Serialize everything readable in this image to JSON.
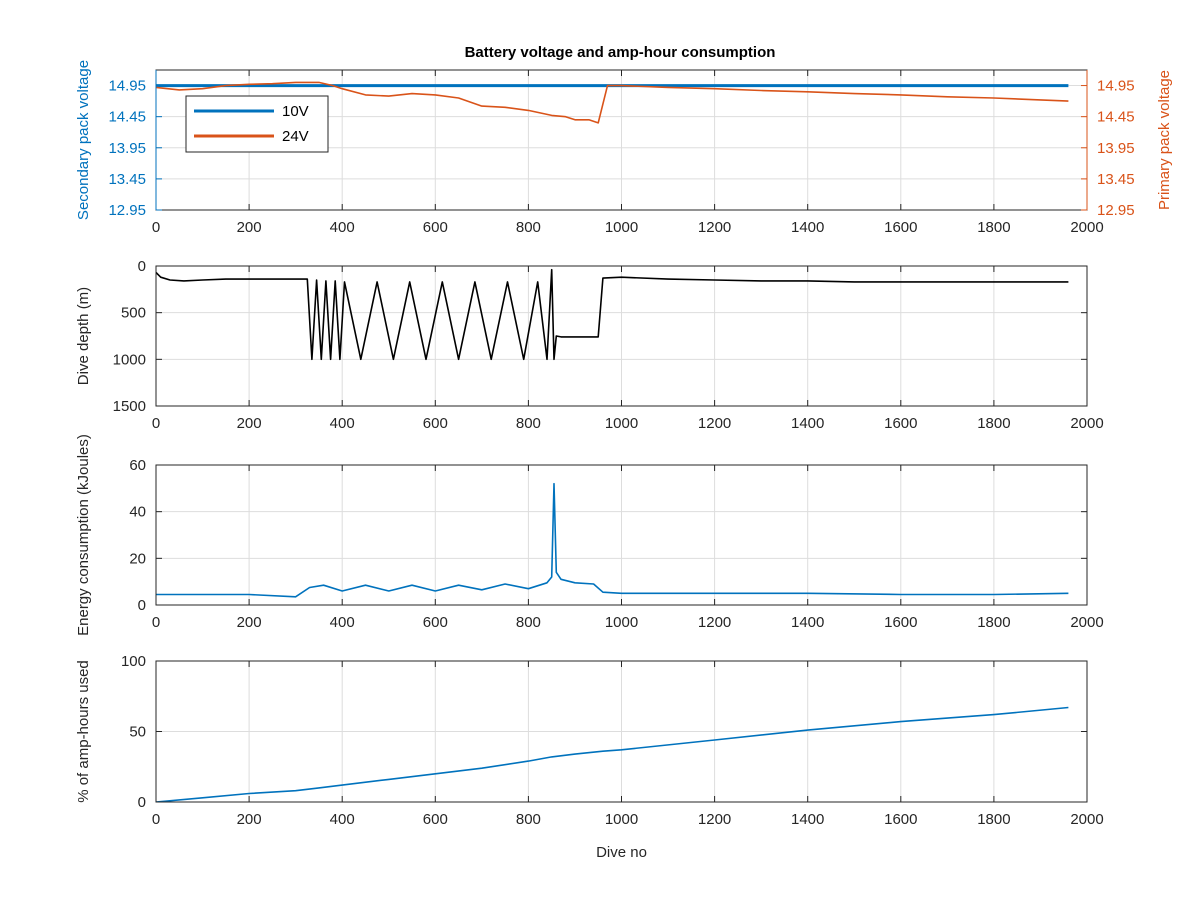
{
  "figure": {
    "title": "Battery voltage and amp-hour consumption",
    "xlabel_bottom": "Dive no"
  },
  "colors": {
    "blue": "#0072BD",
    "orange": "#D95319",
    "black": "#000000",
    "grid": "#dddddd",
    "axis": "#262626"
  },
  "chart_data": [
    {
      "type": "line",
      "id": "voltage",
      "title": "Battery voltage and amp-hour consumption",
      "ylabel_left": "Secondary pack voltage",
      "ylabel_right": "Primary pack voltage",
      "xlim": [
        0,
        2000
      ],
      "ylim": [
        12.95,
        15.2
      ],
      "x_ticks": [
        "0",
        "200",
        "400",
        "600",
        "800",
        "1000",
        "1200",
        "1400",
        "1600",
        "1800",
        "2000"
      ],
      "y_ticks_left": [
        "12.95",
        "13.45",
        "13.95",
        "14.45",
        "14.95"
      ],
      "y_ticks_right": [
        "12.95",
        "13.45",
        "13.95",
        "14.45",
        "14.95"
      ],
      "legend": {
        "placement": "top-left",
        "entries": [
          "10V",
          "24V"
        ]
      },
      "grid": true,
      "series": [
        {
          "name": "10V",
          "axis": "left",
          "color": "#0072BD",
          "x": [
            0,
            1960
          ],
          "y": [
            14.95,
            14.95
          ]
        },
        {
          "name": "24V",
          "axis": "right",
          "color": "#D95319",
          "x": [
            0,
            50,
            100,
            150,
            200,
            250,
            300,
            350,
            380,
            400,
            450,
            500,
            550,
            600,
            650,
            700,
            750,
            800,
            850,
            880,
            900,
            930,
            950,
            970,
            1000,
            1100,
            1200,
            1300,
            1400,
            1500,
            1600,
            1700,
            1800,
            1900,
            1960
          ],
          "y": [
            14.92,
            14.88,
            14.9,
            14.95,
            14.97,
            14.98,
            15.0,
            15.0,
            14.95,
            14.9,
            14.8,
            14.78,
            14.82,
            14.8,
            14.75,
            14.62,
            14.6,
            14.55,
            14.47,
            14.45,
            14.4,
            14.4,
            14.35,
            14.95,
            14.95,
            14.92,
            14.9,
            14.87,
            14.85,
            14.82,
            14.8,
            14.77,
            14.75,
            14.72,
            14.7
          ]
        }
      ]
    },
    {
      "type": "line",
      "id": "depth",
      "ylabel": "Dive depth (m)",
      "xlim": [
        0,
        2000
      ],
      "ylim": [
        0,
        1500
      ],
      "y_reversed": true,
      "x_ticks": [
        "0",
        "200",
        "400",
        "600",
        "800",
        "1000",
        "1200",
        "1400",
        "1600",
        "1800",
        "2000"
      ],
      "y_ticks": [
        "0",
        "500",
        "1000",
        "1500"
      ],
      "grid": true,
      "series": [
        {
          "name": "",
          "color": "#000000",
          "x": [
            0,
            10,
            30,
            60,
            100,
            150,
            200,
            250,
            300,
            325,
            335,
            345,
            355,
            365,
            375,
            385,
            395,
            405,
            440,
            475,
            510,
            545,
            580,
            615,
            650,
            685,
            720,
            755,
            790,
            820,
            840,
            850,
            855,
            860,
            870,
            900,
            940,
            950,
            960,
            1000,
            1100,
            1200,
            1300,
            1400,
            1500,
            1600,
            1700,
            1800,
            1900,
            1960
          ],
          "y": [
            70,
            120,
            150,
            160,
            150,
            140,
            140,
            140,
            140,
            140,
            1000,
            150,
            1000,
            160,
            1000,
            160,
            1000,
            170,
            1000,
            170,
            1000,
            170,
            1000,
            170,
            1000,
            170,
            1000,
            170,
            1000,
            170,
            1000,
            40,
            1000,
            750,
            760,
            760,
            760,
            760,
            130,
            120,
            140,
            150,
            160,
            160,
            170,
            170,
            170,
            170,
            170,
            170
          ]
        }
      ]
    },
    {
      "type": "line",
      "id": "energy",
      "ylabel": "Energy consumption (kJoules)",
      "xlim": [
        0,
        2000
      ],
      "ylim": [
        0,
        60
      ],
      "x_ticks": [
        "0",
        "200",
        "400",
        "600",
        "800",
        "1000",
        "1200",
        "1400",
        "1600",
        "1800",
        "2000"
      ],
      "y_ticks": [
        "0",
        "20",
        "40",
        "60"
      ],
      "grid": true,
      "series": [
        {
          "name": "",
          "color": "#0072BD",
          "x": [
            0,
            100,
            200,
            300,
            330,
            360,
            400,
            450,
            500,
            550,
            600,
            650,
            700,
            750,
            800,
            840,
            850,
            855,
            860,
            870,
            900,
            940,
            960,
            1000,
            1200,
            1400,
            1600,
            1800,
            1960
          ],
          "y": [
            4.5,
            4.5,
            4.5,
            3.5,
            7.5,
            8.5,
            6.0,
            8.5,
            6.0,
            8.5,
            6.0,
            8.5,
            6.5,
            9.0,
            7.0,
            9.5,
            12.0,
            52.0,
            14.0,
            11.0,
            9.5,
            9.0,
            5.5,
            5.0,
            5.0,
            5.0,
            4.5,
            4.5,
            5.0
          ]
        }
      ]
    },
    {
      "type": "line",
      "id": "amp-hours",
      "ylabel": "% of amp-hours used",
      "xlabel": "Dive no",
      "xlim": [
        0,
        2000
      ],
      "ylim": [
        0,
        100
      ],
      "x_ticks": [
        "0",
        "200",
        "400",
        "600",
        "800",
        "1000",
        "1200",
        "1400",
        "1600",
        "1800",
        "2000"
      ],
      "y_ticks": [
        "0",
        "50",
        "100"
      ],
      "grid": true,
      "series": [
        {
          "name": "",
          "color": "#0072BD",
          "x": [
            0,
            100,
            200,
            300,
            350,
            400,
            500,
            600,
            700,
            800,
            850,
            900,
            960,
            1000,
            1200,
            1400,
            1600,
            1800,
            1960
          ],
          "y": [
            0,
            3,
            6,
            8,
            10,
            12,
            16,
            20,
            24,
            29,
            32,
            34,
            36,
            37,
            44,
            51,
            57,
            62,
            67
          ]
        }
      ]
    }
  ]
}
